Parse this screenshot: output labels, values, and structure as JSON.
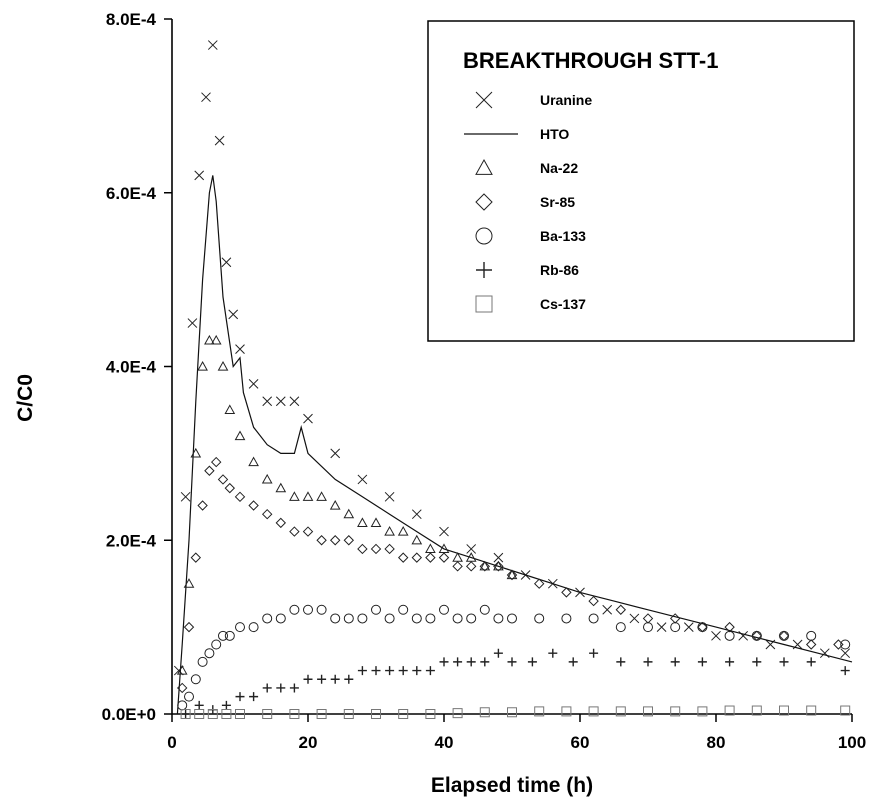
{
  "chart_data": {
    "type": "scatter",
    "title": "BREAKTHROUGH STT-1",
    "xlabel": "Elapsed time (h)",
    "ylabel": "C/C0",
    "xlim": [
      0,
      100
    ],
    "ylim": [
      0,
      0.0008
    ],
    "x_ticks": [
      0,
      20,
      40,
      60,
      80,
      100
    ],
    "x_tick_labels": [
      "0",
      "20",
      "40",
      "60",
      "80",
      "100"
    ],
    "y_ticks": [
      0,
      0.0002,
      0.0004,
      0.0006,
      0.0008
    ],
    "y_tick_labels": [
      "0.0E+0",
      "2.0E-4",
      "4.0E-4",
      "6.0E-4",
      "8.0E-4"
    ],
    "grid": false,
    "legend_position": "top-right",
    "series": [
      {
        "name": "Uranine",
        "marker": "x",
        "x": [
          1,
          2,
          3,
          4,
          5,
          6,
          7,
          8,
          9,
          10,
          12,
          14,
          16,
          18,
          20,
          24,
          28,
          32,
          36,
          40,
          44,
          48,
          52,
          56,
          60,
          64,
          68,
          72,
          76,
          80,
          84,
          88,
          92,
          96,
          99
        ],
        "y": [
          5e-05,
          0.00025,
          0.00045,
          0.00062,
          0.00071,
          0.00077,
          0.00066,
          0.00052,
          0.00046,
          0.00042,
          0.00038,
          0.00036,
          0.00036,
          0.00036,
          0.00034,
          0.0003,
          0.00027,
          0.00025,
          0.00023,
          0.00021,
          0.00019,
          0.00018,
          0.00016,
          0.00015,
          0.00014,
          0.00012,
          0.00011,
          0.0001,
          0.0001,
          9e-05,
          9e-05,
          8e-05,
          8e-05,
          7e-05,
          7e-05
        ]
      },
      {
        "name": "HTO",
        "marker": "line",
        "x": [
          0.8,
          1.5,
          2.5,
          3.5,
          4.5,
          5.5,
          6.0,
          6.5,
          7.5,
          9.0,
          10.0,
          10.5,
          12,
          14,
          16,
          18,
          19,
          20,
          24,
          28,
          32,
          36,
          40,
          44,
          48,
          52,
          56,
          60,
          65,
          70,
          75,
          80,
          85,
          90,
          95,
          100
        ],
        "y": [
          0.0,
          8e-05,
          0.0002,
          0.00036,
          0.0005,
          0.0006,
          0.00062,
          0.00059,
          0.00048,
          0.0004,
          0.00041,
          0.00037,
          0.00033,
          0.00031,
          0.0003,
          0.0003,
          0.00033,
          0.0003,
          0.00027,
          0.00025,
          0.00023,
          0.00021,
          0.00019,
          0.00018,
          0.00017,
          0.00016,
          0.00015,
          0.00014,
          0.00013,
          0.00012,
          0.00011,
          0.0001,
          9e-05,
          8e-05,
          7e-05,
          6e-05
        ]
      },
      {
        "name": "Na-22",
        "marker": "triangle",
        "x": [
          1.5,
          2.5,
          3.5,
          4.5,
          5.5,
          6.5,
          7.5,
          8.5,
          10,
          12,
          14,
          16,
          18,
          20,
          22,
          24,
          26,
          28,
          30,
          32,
          34,
          36,
          38,
          40,
          42,
          44,
          46,
          48,
          50
        ],
        "y": [
          5e-05,
          0.00015,
          0.0003,
          0.0004,
          0.00043,
          0.00043,
          0.0004,
          0.00035,
          0.00032,
          0.00029,
          0.00027,
          0.00026,
          0.00025,
          0.00025,
          0.00025,
          0.00024,
          0.00023,
          0.00022,
          0.00022,
          0.00021,
          0.00021,
          0.0002,
          0.00019,
          0.00019,
          0.00018,
          0.00018,
          0.00017,
          0.00017,
          0.00016
        ]
      },
      {
        "name": "Sr-85",
        "marker": "diamond",
        "x": [
          1.5,
          2.5,
          3.5,
          4.5,
          5.5,
          6.5,
          7.5,
          8.5,
          10,
          12,
          14,
          16,
          18,
          20,
          22,
          24,
          26,
          28,
          30,
          32,
          34,
          36,
          38,
          40,
          42,
          44,
          46,
          48,
          50,
          54,
          58,
          62,
          66,
          70,
          74,
          78,
          82,
          86,
          90,
          94,
          98
        ],
        "y": [
          3e-05,
          0.0001,
          0.00018,
          0.00024,
          0.00028,
          0.00029,
          0.00027,
          0.00026,
          0.00025,
          0.00024,
          0.00023,
          0.00022,
          0.00021,
          0.00021,
          0.0002,
          0.0002,
          0.0002,
          0.00019,
          0.00019,
          0.00019,
          0.00018,
          0.00018,
          0.00018,
          0.00018,
          0.00017,
          0.00017,
          0.00017,
          0.00017,
          0.00016,
          0.00015,
          0.00014,
          0.00013,
          0.00012,
          0.00011,
          0.00011,
          0.0001,
          0.0001,
          9e-05,
          9e-05,
          8e-05,
          8e-05
        ]
      },
      {
        "name": "Ba-133",
        "marker": "circle",
        "x": [
          1.5,
          2.5,
          3.5,
          4.5,
          5.5,
          6.5,
          7.5,
          8.5,
          10,
          12,
          14,
          16,
          18,
          20,
          22,
          24,
          26,
          28,
          30,
          32,
          34,
          36,
          38,
          40,
          42,
          44,
          46,
          48,
          50,
          54,
          58,
          62,
          66,
          70,
          74,
          78,
          82,
          86,
          90,
          94,
          99
        ],
        "y": [
          1e-05,
          2e-05,
          4e-05,
          6e-05,
          7e-05,
          8e-05,
          9e-05,
          9e-05,
          0.0001,
          0.0001,
          0.00011,
          0.00011,
          0.00012,
          0.00012,
          0.00012,
          0.00011,
          0.00011,
          0.00011,
          0.00012,
          0.00011,
          0.00012,
          0.00011,
          0.00011,
          0.00012,
          0.00011,
          0.00011,
          0.00012,
          0.00011,
          0.00011,
          0.00011,
          0.00011,
          0.00011,
          0.0001,
          0.0001,
          0.0001,
          0.0001,
          9e-05,
          9e-05,
          9e-05,
          9e-05,
          8e-05
        ]
      },
      {
        "name": "Rb-86",
        "marker": "plus",
        "x": [
          2,
          4,
          6,
          8,
          10,
          12,
          14,
          16,
          18,
          20,
          22,
          24,
          26,
          28,
          30,
          32,
          34,
          36,
          38,
          40,
          42,
          44,
          46,
          48,
          50,
          53,
          56,
          59,
          62,
          66,
          70,
          74,
          78,
          82,
          86,
          90,
          94,
          99
        ],
        "y": [
          0.0,
          1e-05,
          5e-06,
          1e-05,
          2e-05,
          2e-05,
          3e-05,
          3e-05,
          3e-05,
          4e-05,
          4e-05,
          4e-05,
          4e-05,
          5e-05,
          5e-05,
          5e-05,
          5e-05,
          5e-05,
          5e-05,
          6e-05,
          6e-05,
          6e-05,
          6e-05,
          7e-05,
          6e-05,
          6e-05,
          7e-05,
          6e-05,
          7e-05,
          6e-05,
          6e-05,
          6e-05,
          6e-05,
          6e-05,
          6e-05,
          6e-05,
          6e-05,
          5e-05
        ]
      },
      {
        "name": "Cs-137",
        "marker": "square",
        "x": [
          2,
          4,
          6,
          8,
          10,
          14,
          18,
          22,
          26,
          30,
          34,
          38,
          42,
          46,
          50,
          54,
          58,
          62,
          66,
          70,
          74,
          78,
          82,
          86,
          90,
          94,
          99
        ],
        "y": [
          0.0,
          0.0,
          0.0,
          0.0,
          0.0,
          0.0,
          0.0,
          0.0,
          0.0,
          0.0,
          0.0,
          0.0,
          1e-06,
          2e-06,
          2e-06,
          3e-06,
          3e-06,
          3e-06,
          3e-06,
          3e-06,
          3e-06,
          3e-06,
          4e-06,
          4e-06,
          4e-06,
          4e-06,
          4e-06
        ]
      }
    ]
  },
  "colors": {
    "axis": "#000000",
    "marker": "#222222",
    "light_marker": "#777777",
    "background": "#ffffff"
  }
}
